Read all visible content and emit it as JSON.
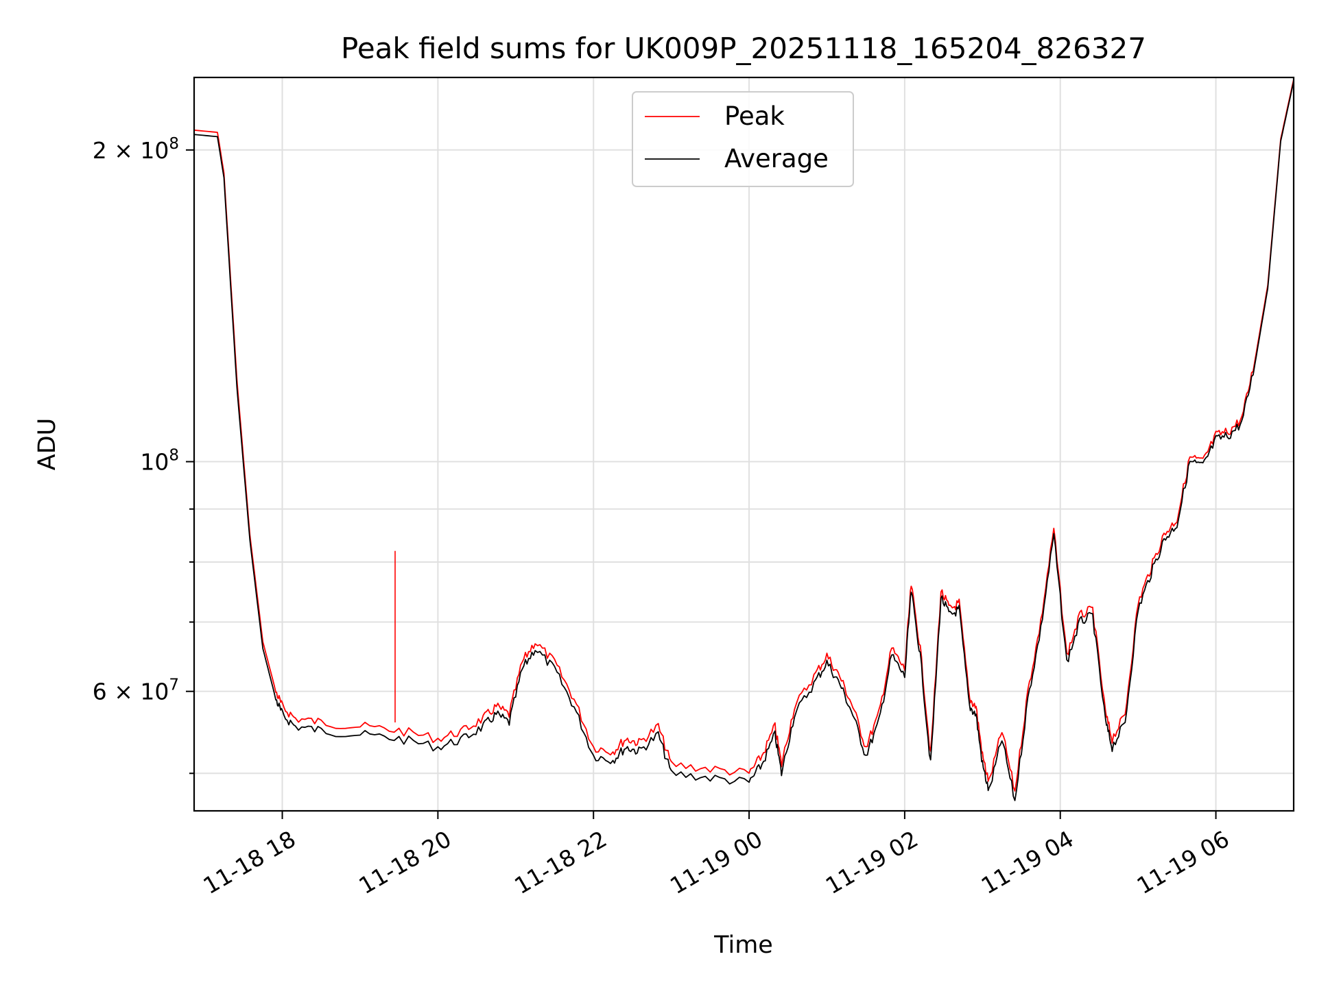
{
  "chart_data": {
    "type": "line",
    "title": "Peak field sums for UK009P_20251118_165204_826327",
    "xlabel": "Time",
    "ylabel": "ADU",
    "yscale": "log",
    "xlim": [
      "2025-11-18 16:52",
      "2025-11-19 07:00"
    ],
    "ylim": [
      46000000,
      235000000
    ],
    "grid": true,
    "legend_position": "top-center",
    "x_ticks": [
      {
        "value": "2025-11-18 18:00",
        "label": "11-18 18"
      },
      {
        "value": "2025-11-18 20:00",
        "label": "11-18 20"
      },
      {
        "value": "2025-11-18 22:00",
        "label": "11-18 22"
      },
      {
        "value": "2025-11-19 00:00",
        "label": "11-19 00"
      },
      {
        "value": "2025-11-19 02:00",
        "label": "11-19 02"
      },
      {
        "value": "2025-11-19 04:00",
        "label": "11-19 04"
      },
      {
        "value": "2025-11-19 06:00",
        "label": "11-19 06"
      }
    ],
    "y_ticks_major": [
      {
        "value": 200000000,
        "label_base": "2 × 10",
        "label_exp": "8"
      },
      {
        "value": 100000000,
        "label_base": "10",
        "label_exp": "8"
      },
      {
        "value": 60000000,
        "label_base": "6 × 10",
        "label_exp": "7"
      }
    ],
    "y_ticks_minor": [
      50000000,
      70000000,
      80000000,
      90000000
    ],
    "x": [
      "2025-11-18 16:52",
      "2025-11-18 17:10",
      "2025-11-18 17:15",
      "2025-11-18 17:25",
      "2025-11-18 17:35",
      "2025-11-18 17:45",
      "2025-11-18 17:55",
      "2025-11-18 18:00",
      "2025-11-18 18:10",
      "2025-11-18 18:30",
      "2025-11-18 19:00",
      "2025-11-18 19:30",
      "2025-11-18 20:00",
      "2025-11-18 20:20",
      "2025-11-18 20:35",
      "2025-11-18 20:45",
      "2025-11-18 20:55",
      "2025-11-18 21:05",
      "2025-11-18 21:15",
      "2025-11-18 21:30",
      "2025-11-18 21:45",
      "2025-11-18 22:00",
      "2025-11-18 22:15",
      "2025-11-18 22:25",
      "2025-11-18 22:35",
      "2025-11-18 22:50",
      "2025-11-18 23:00",
      "2025-11-18 23:30",
      "2025-11-19 00:00",
      "2025-11-19 00:10",
      "2025-11-19 00:20",
      "2025-11-19 00:25",
      "2025-11-19 00:35",
      "2025-11-19 00:50",
      "2025-11-19 01:00",
      "2025-11-19 01:10",
      "2025-11-19 01:20",
      "2025-11-19 01:30",
      "2025-11-19 01:40",
      "2025-11-19 01:50",
      "2025-11-19 02:00",
      "2025-11-19 02:05",
      "2025-11-19 02:12",
      "2025-11-19 02:20",
      "2025-11-19 02:28",
      "2025-11-19 02:35",
      "2025-11-19 02:42",
      "2025-11-19 02:50",
      "2025-11-19 02:55",
      "2025-11-19 03:00",
      "2025-11-19 03:05",
      "2025-11-19 03:15",
      "2025-11-19 03:25",
      "2025-11-19 03:35",
      "2025-11-19 03:45",
      "2025-11-19 03:55",
      "2025-11-19 04:05",
      "2025-11-19 04:15",
      "2025-11-19 04:25",
      "2025-11-19 04:35",
      "2025-11-19 04:40",
      "2025-11-19 04:50",
      "2025-11-19 05:00",
      "2025-11-19 05:10",
      "2025-11-19 05:20",
      "2025-11-19 05:30",
      "2025-11-19 05:40",
      "2025-11-19 05:50",
      "2025-11-19 06:00",
      "2025-11-19 06:10",
      "2025-11-19 06:20",
      "2025-11-19 06:30",
      "2025-11-19 06:40",
      "2025-11-19 06:50",
      "2025-11-19 07:00"
    ],
    "series": [
      {
        "name": "Peak",
        "color": "#ff0000",
        "values": [
          209000000,
          208000000,
          190000000,
          120000000,
          85000000,
          67000000,
          60000000,
          58000000,
          56500000,
          56000000,
          55500000,
          55000000,
          54000000,
          55000000,
          56500000,
          58000000,
          57000000,
          64000000,
          67000000,
          64000000,
          59000000,
          53000000,
          52500000,
          54000000,
          53500000,
          55500000,
          51000000,
          50500000,
          50000000,
          52000000,
          55500000,
          51000000,
          58000000,
          62000000,
          65000000,
          62000000,
          58000000,
          53000000,
          57000000,
          66000000,
          63000000,
          76000000,
          66000000,
          52000000,
          75000000,
          72000000,
          73000000,
          59000000,
          58000000,
          52000000,
          49000000,
          55000000,
          48000000,
          60000000,
          70000000,
          86000000,
          65000000,
          71000000,
          72000000,
          57000000,
          54000000,
          57000000,
          73000000,
          79000000,
          85000000,
          88000000,
          101000000,
          100000000,
          106000000,
          107000000,
          110000000,
          125000000,
          148000000,
          205000000,
          234000000
        ]
      },
      {
        "name": "Average",
        "color": "#000000",
        "values": [
          207000000,
          206000000,
          188000000,
          118000000,
          84000000,
          66000000,
          59000000,
          57000000,
          55500000,
          55000000,
          54500000,
          54000000,
          53000000,
          54000000,
          55500000,
          57000000,
          56000000,
          63000000,
          66000000,
          63000000,
          58000000,
          52000000,
          51500000,
          53000000,
          52500000,
          54500000,
          50000000,
          49500000,
          49000000,
          51000000,
          54500000,
          50000000,
          57000000,
          61000000,
          64000000,
          61000000,
          57000000,
          52000000,
          56000000,
          65000000,
          62000000,
          75000000,
          65000000,
          51000000,
          74000000,
          71000000,
          72000000,
          58000000,
          57000000,
          51000000,
          48000000,
          54000000,
          47000000,
          59000000,
          69000000,
          85000000,
          64000000,
          70000000,
          71000000,
          56000000,
          53000000,
          56000000,
          72000000,
          78000000,
          84000000,
          87000000,
          100000000,
          99000000,
          105000000,
          106000000,
          109000000,
          124000000,
          147000000,
          204000000,
          233000000
        ]
      }
    ],
    "annotations": [
      {
        "series": "Peak",
        "x": "2025-11-18 19:27",
        "y": 82000000,
        "note": "spike"
      }
    ]
  }
}
